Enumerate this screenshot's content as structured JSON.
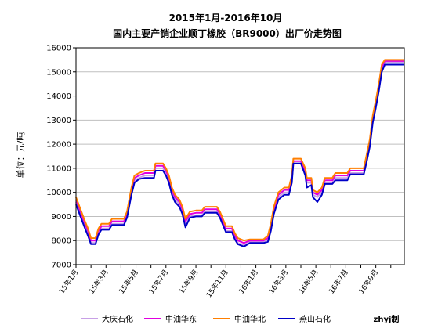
{
  "chart_data": {
    "type": "line",
    "title_line1": "2015年1月-2016年10月",
    "title_line2": "国内主要产销企业顺丁橡胶（BR9000）出厂价走势图",
    "ylabel": "单位：元/吨",
    "xlabel": "",
    "ylim": [
      7000,
      16000
    ],
    "yticks": [
      7000,
      8000,
      9000,
      10000,
      11000,
      12000,
      13000,
      14000,
      15000,
      16000
    ],
    "x_tick_labels": [
      "15年1月",
      "15年3月",
      "15年5月",
      "15年7月",
      "15年9月",
      "15年11月",
      "16年1月",
      "16年3月",
      "16年5月",
      "16年7月",
      "16年9月"
    ],
    "x_tick_positions": [
      0,
      2,
      4,
      6,
      8,
      10,
      12,
      14,
      16,
      18,
      20
    ],
    "x_max": 21.9,
    "grid": "horizontal",
    "legend_position": "bottom",
    "credit": "zhyj制",
    "series": [
      {
        "name": "大庆石化",
        "color": "#c8a0e6",
        "points": [
          [
            0,
            9600
          ],
          [
            0.3,
            9100
          ],
          [
            0.6,
            8600
          ],
          [
            0.8,
            8300
          ],
          [
            1.0,
            7900
          ],
          [
            1.3,
            7900
          ],
          [
            1.5,
            8300
          ],
          [
            1.7,
            8500
          ],
          [
            2.2,
            8500
          ],
          [
            2.4,
            8700
          ],
          [
            3.2,
            8700
          ],
          [
            3.4,
            9000
          ],
          [
            3.7,
            10000
          ],
          [
            3.9,
            10500
          ],
          [
            4.2,
            10600
          ],
          [
            4.6,
            10700
          ],
          [
            5.2,
            10700
          ],
          [
            5.3,
            11000
          ],
          [
            5.8,
            11000
          ],
          [
            6.0,
            10800
          ],
          [
            6.2,
            10500
          ],
          [
            6.4,
            10000
          ],
          [
            6.6,
            9700
          ],
          [
            6.9,
            9500
          ],
          [
            7.1,
            9200
          ],
          [
            7.3,
            8700
          ],
          [
            7.6,
            9000
          ],
          [
            8.0,
            9050
          ],
          [
            8.4,
            9050
          ],
          [
            8.6,
            9200
          ],
          [
            9.1,
            9200
          ],
          [
            9.4,
            9200
          ],
          [
            9.6,
            9000
          ],
          [
            9.8,
            8700
          ],
          [
            10.0,
            8400
          ],
          [
            10.4,
            8400
          ],
          [
            10.6,
            8100
          ],
          [
            10.8,
            7900
          ],
          [
            11.2,
            7800
          ],
          [
            11.6,
            7950
          ],
          [
            12.5,
            7950
          ],
          [
            12.8,
            8000
          ],
          [
            13.0,
            8500
          ],
          [
            13.2,
            9200
          ],
          [
            13.5,
            9800
          ],
          [
            13.9,
            10000
          ],
          [
            14.2,
            10000
          ],
          [
            14.4,
            10500
          ],
          [
            14.5,
            11200
          ],
          [
            15.0,
            11200
          ],
          [
            15.3,
            10800
          ],
          [
            15.4,
            10400
          ],
          [
            15.7,
            10400
          ],
          [
            15.8,
            9900
          ],
          [
            16.1,
            9800
          ],
          [
            16.4,
            10000
          ],
          [
            16.6,
            10400
          ],
          [
            17.1,
            10400
          ],
          [
            17.3,
            10600
          ],
          [
            18.1,
            10600
          ],
          [
            18.3,
            10800
          ],
          [
            19.2,
            10800
          ],
          [
            19.4,
            11400
          ],
          [
            19.6,
            12000
          ],
          [
            19.8,
            13000
          ],
          [
            20.0,
            13600
          ],
          [
            20.2,
            14300
          ],
          [
            20.4,
            15100
          ],
          [
            20.6,
            15400
          ],
          [
            21.9,
            15400
          ]
        ]
      },
      {
        "name": "中油华东",
        "color": "#e000e0",
        "points": [
          [
            0,
            9700
          ],
          [
            0.3,
            9200
          ],
          [
            0.6,
            8700
          ],
          [
            0.8,
            8400
          ],
          [
            1.0,
            8000
          ],
          [
            1.3,
            8000
          ],
          [
            1.5,
            8400
          ],
          [
            1.7,
            8600
          ],
          [
            2.2,
            8600
          ],
          [
            2.4,
            8800
          ],
          [
            3.2,
            8800
          ],
          [
            3.4,
            9100
          ],
          [
            3.7,
            10100
          ],
          [
            3.9,
            10600
          ],
          [
            4.2,
            10700
          ],
          [
            4.6,
            10800
          ],
          [
            5.2,
            10800
          ],
          [
            5.3,
            11100
          ],
          [
            5.8,
            11100
          ],
          [
            6.0,
            10900
          ],
          [
            6.2,
            10600
          ],
          [
            6.4,
            10100
          ],
          [
            6.6,
            9800
          ],
          [
            6.9,
            9600
          ],
          [
            7.1,
            9300
          ],
          [
            7.3,
            8800
          ],
          [
            7.6,
            9100
          ],
          [
            8.0,
            9150
          ],
          [
            8.4,
            9150
          ],
          [
            8.6,
            9300
          ],
          [
            9.1,
            9300
          ],
          [
            9.4,
            9300
          ],
          [
            9.6,
            9100
          ],
          [
            9.8,
            8800
          ],
          [
            10.0,
            8500
          ],
          [
            10.4,
            8500
          ],
          [
            10.6,
            8200
          ],
          [
            10.8,
            8000
          ],
          [
            11.2,
            7900
          ],
          [
            11.6,
            8000
          ],
          [
            12.5,
            8000
          ],
          [
            12.8,
            8100
          ],
          [
            13.0,
            8600
          ],
          [
            13.2,
            9300
          ],
          [
            13.5,
            9900
          ],
          [
            13.9,
            10100
          ],
          [
            14.2,
            10100
          ],
          [
            14.4,
            10600
          ],
          [
            14.5,
            11300
          ],
          [
            15.0,
            11300
          ],
          [
            15.3,
            10900
          ],
          [
            15.4,
            10500
          ],
          [
            15.7,
            10500
          ],
          [
            15.8,
            10000
          ],
          [
            16.1,
            9900
          ],
          [
            16.4,
            10100
          ],
          [
            16.6,
            10500
          ],
          [
            17.1,
            10500
          ],
          [
            17.3,
            10700
          ],
          [
            18.1,
            10700
          ],
          [
            18.3,
            10900
          ],
          [
            19.2,
            10900
          ],
          [
            19.4,
            11500
          ],
          [
            19.6,
            12100
          ],
          [
            19.8,
            13100
          ],
          [
            20.0,
            13700
          ],
          [
            20.2,
            14400
          ],
          [
            20.4,
            15200
          ],
          [
            20.6,
            15450
          ],
          [
            21.9,
            15450
          ]
        ]
      },
      {
        "name": "中油华北",
        "color": "#ff7f00",
        "points": [
          [
            0,
            9800
          ],
          [
            0.3,
            9300
          ],
          [
            0.6,
            8800
          ],
          [
            0.8,
            8500
          ],
          [
            1.0,
            8100
          ],
          [
            1.3,
            8100
          ],
          [
            1.5,
            8500
          ],
          [
            1.7,
            8700
          ],
          [
            2.2,
            8700
          ],
          [
            2.4,
            8900
          ],
          [
            3.2,
            8900
          ],
          [
            3.4,
            9200
          ],
          [
            3.7,
            10200
          ],
          [
            3.9,
            10700
          ],
          [
            4.2,
            10800
          ],
          [
            4.6,
            10900
          ],
          [
            5.2,
            10900
          ],
          [
            5.3,
            11200
          ],
          [
            5.8,
            11200
          ],
          [
            6.0,
            11000
          ],
          [
            6.2,
            10700
          ],
          [
            6.4,
            10200
          ],
          [
            6.6,
            9900
          ],
          [
            6.9,
            9700
          ],
          [
            7.1,
            9400
          ],
          [
            7.3,
            8900
          ],
          [
            7.6,
            9200
          ],
          [
            8.0,
            9250
          ],
          [
            8.4,
            9250
          ],
          [
            8.6,
            9400
          ],
          [
            9.1,
            9400
          ],
          [
            9.4,
            9400
          ],
          [
            9.6,
            9200
          ],
          [
            9.8,
            8900
          ],
          [
            10.0,
            8600
          ],
          [
            10.4,
            8600
          ],
          [
            10.6,
            8300
          ],
          [
            10.8,
            8100
          ],
          [
            11.2,
            8000
          ],
          [
            11.6,
            8050
          ],
          [
            12.5,
            8050
          ],
          [
            12.8,
            8200
          ],
          [
            13.0,
            8700
          ],
          [
            13.2,
            9400
          ],
          [
            13.5,
            10000
          ],
          [
            13.9,
            10200
          ],
          [
            14.2,
            10200
          ],
          [
            14.4,
            10700
          ],
          [
            14.5,
            11400
          ],
          [
            15.0,
            11400
          ],
          [
            15.3,
            11000
          ],
          [
            15.4,
            10600
          ],
          [
            15.7,
            10600
          ],
          [
            15.8,
            10100
          ],
          [
            16.1,
            10000
          ],
          [
            16.4,
            10200
          ],
          [
            16.6,
            10600
          ],
          [
            17.1,
            10600
          ],
          [
            17.3,
            10800
          ],
          [
            18.1,
            10800
          ],
          [
            18.3,
            11000
          ],
          [
            19.2,
            11000
          ],
          [
            19.4,
            11600
          ],
          [
            19.6,
            12200
          ],
          [
            19.8,
            13200
          ],
          [
            20.0,
            13800
          ],
          [
            20.2,
            14500
          ],
          [
            20.4,
            15300
          ],
          [
            20.6,
            15500
          ],
          [
            21.9,
            15500
          ]
        ]
      },
      {
        "name": "燕山石化",
        "color": "#0000c8",
        "points": [
          [
            0,
            9500
          ],
          [
            0.3,
            9000
          ],
          [
            0.6,
            8500
          ],
          [
            0.8,
            8200
          ],
          [
            1.0,
            7850
          ],
          [
            1.3,
            7850
          ],
          [
            1.5,
            8250
          ],
          [
            1.7,
            8450
          ],
          [
            2.2,
            8450
          ],
          [
            2.4,
            8650
          ],
          [
            3.2,
            8650
          ],
          [
            3.4,
            8950
          ],
          [
            3.7,
            9900
          ],
          [
            3.9,
            10400
          ],
          [
            4.2,
            10550
          ],
          [
            4.6,
            10600
          ],
          [
            5.2,
            10600
          ],
          [
            5.3,
            10900
          ],
          [
            5.8,
            10900
          ],
          [
            6.0,
            10700
          ],
          [
            6.2,
            10400
          ],
          [
            6.4,
            9900
          ],
          [
            6.6,
            9600
          ],
          [
            6.9,
            9400
          ],
          [
            7.1,
            9100
          ],
          [
            7.3,
            8550
          ],
          [
            7.6,
            8950
          ],
          [
            8.0,
            9000
          ],
          [
            8.4,
            9000
          ],
          [
            8.6,
            9150
          ],
          [
            9.1,
            9150
          ],
          [
            9.4,
            9150
          ],
          [
            9.6,
            8950
          ],
          [
            9.8,
            8650
          ],
          [
            10.0,
            8350
          ],
          [
            10.4,
            8350
          ],
          [
            10.6,
            8050
          ],
          [
            10.8,
            7850
          ],
          [
            11.2,
            7750
          ],
          [
            11.6,
            7900
          ],
          [
            12.5,
            7900
          ],
          [
            12.8,
            7950
          ],
          [
            13.0,
            8400
          ],
          [
            13.2,
            9100
          ],
          [
            13.5,
            9700
          ],
          [
            13.9,
            9900
          ],
          [
            14.2,
            9900
          ],
          [
            14.4,
            10400
          ],
          [
            14.5,
            11200
          ],
          [
            15.0,
            11200
          ],
          [
            15.3,
            10700
          ],
          [
            15.4,
            10200
          ],
          [
            15.7,
            10300
          ],
          [
            15.8,
            9800
          ],
          [
            16.1,
            9600
          ],
          [
            16.4,
            9900
          ],
          [
            16.6,
            10350
          ],
          [
            17.1,
            10350
          ],
          [
            17.3,
            10500
          ],
          [
            18.1,
            10500
          ],
          [
            18.3,
            10750
          ],
          [
            19.2,
            10750
          ],
          [
            19.4,
            11300
          ],
          [
            19.6,
            11900
          ],
          [
            19.8,
            12900
          ],
          [
            20.0,
            13500
          ],
          [
            20.2,
            14200
          ],
          [
            20.4,
            15000
          ],
          [
            20.6,
            15300
          ],
          [
            21.9,
            15300
          ]
        ]
      }
    ]
  }
}
